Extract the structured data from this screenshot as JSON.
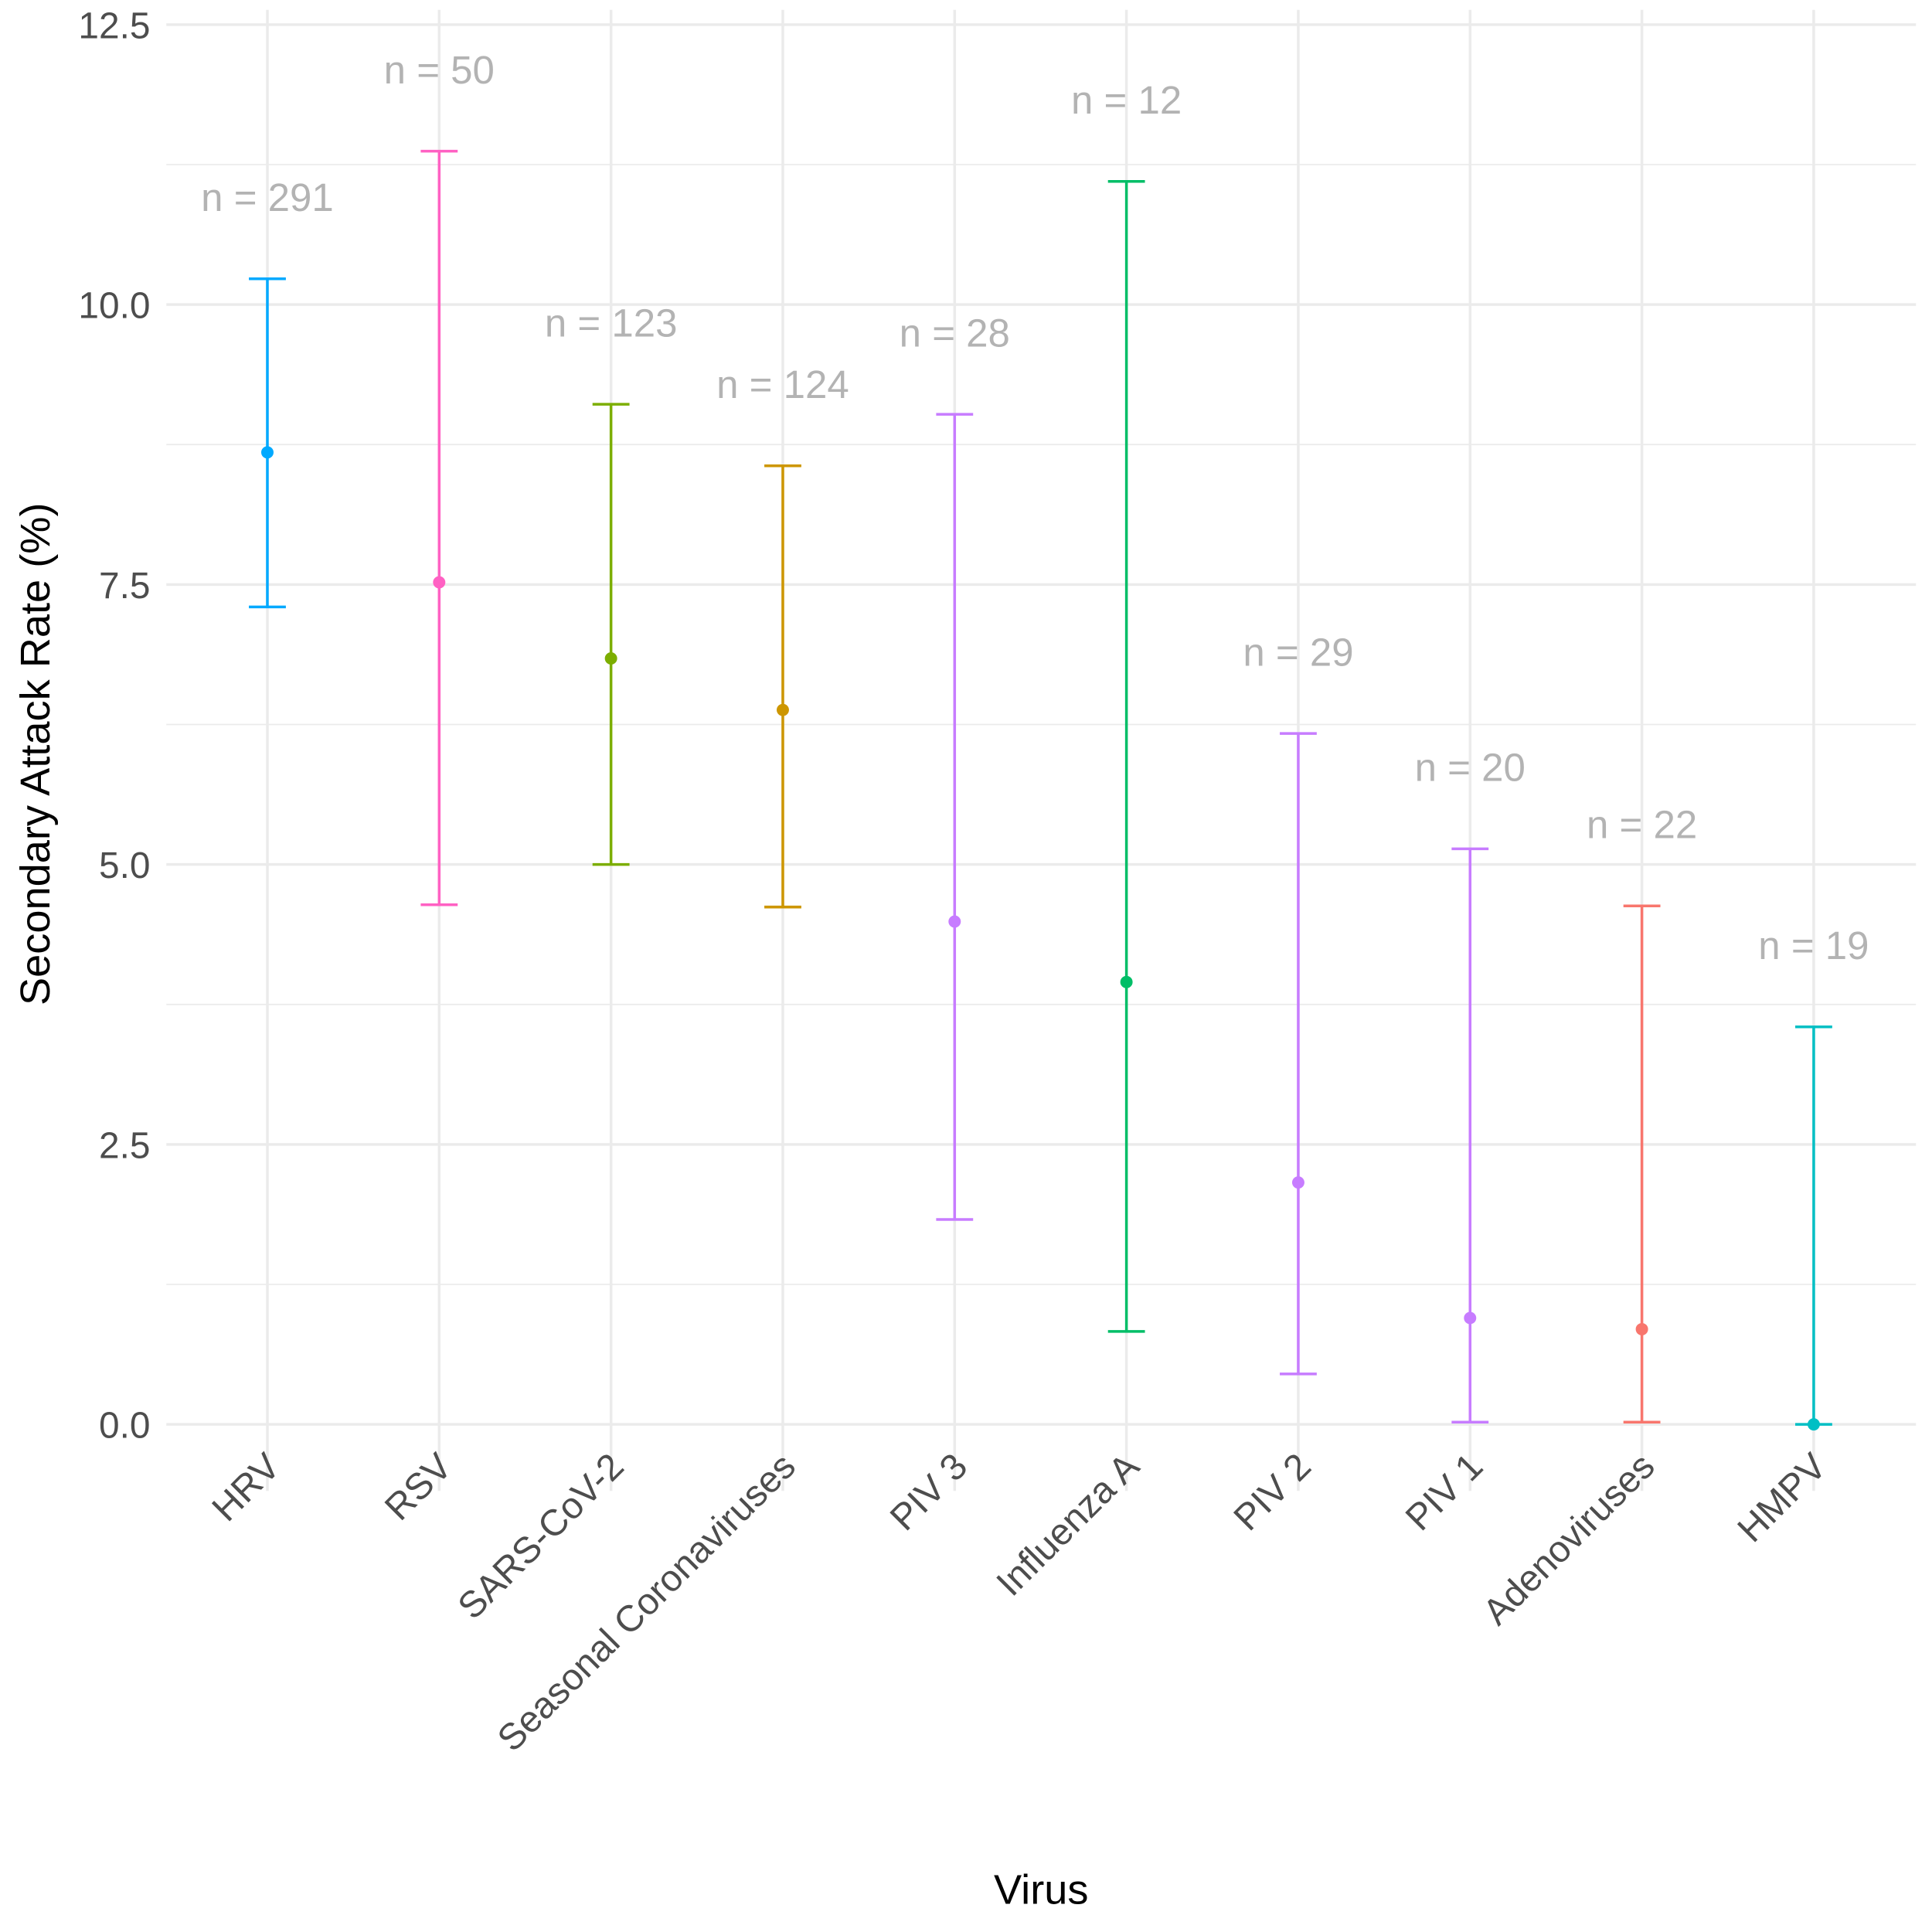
{
  "chart_data": {
    "type": "scatter",
    "subtype": "point-with-errorbars",
    "xlabel": "Virus",
    "ylabel": "Secondary Attack Rate (%)",
    "ylim": [
      -0.6,
      12.5
    ],
    "yticks": [
      "0.0",
      "2.5",
      "5.0",
      "7.5",
      "10.0",
      "12.5"
    ],
    "grid": true,
    "legend": "none",
    "categories": [
      "HRV",
      "RSV",
      "SARS-CoV-2",
      "Seasonal Coronaviruses",
      "PIV 3",
      "Influenza A",
      "PIV 2",
      "PIV 1",
      "Adenoviruses",
      "HMPV"
    ],
    "values": [
      8.68,
      7.52,
      6.84,
      6.38,
      4.49,
      3.95,
      2.16,
      0.95,
      0.85,
      0.0
    ],
    "lower": [
      7.3,
      4.64,
      5.0,
      4.62,
      1.83,
      0.83,
      0.45,
      0.02,
      0.02,
      0.0
    ],
    "upper": [
      10.23,
      11.37,
      9.11,
      8.56,
      9.02,
      11.1,
      6.17,
      5.14,
      4.63,
      3.55
    ],
    "n_labels": [
      "n = 291",
      "n = 50",
      "n = 123",
      "n = 124",
      "n = 28",
      "n = 12",
      "n = 29",
      "n = 20",
      "n = 22",
      "n = 19"
    ],
    "colors": [
      "#00A9FF",
      "#FF61C3",
      "#7CAE00",
      "#CD9600",
      "#C77CFF",
      "#00BE67",
      "#C77CFF",
      "#C77CFF",
      "#F8766D",
      "#00BFC4"
    ],
    "n_label_color": "#B3B3B3"
  }
}
